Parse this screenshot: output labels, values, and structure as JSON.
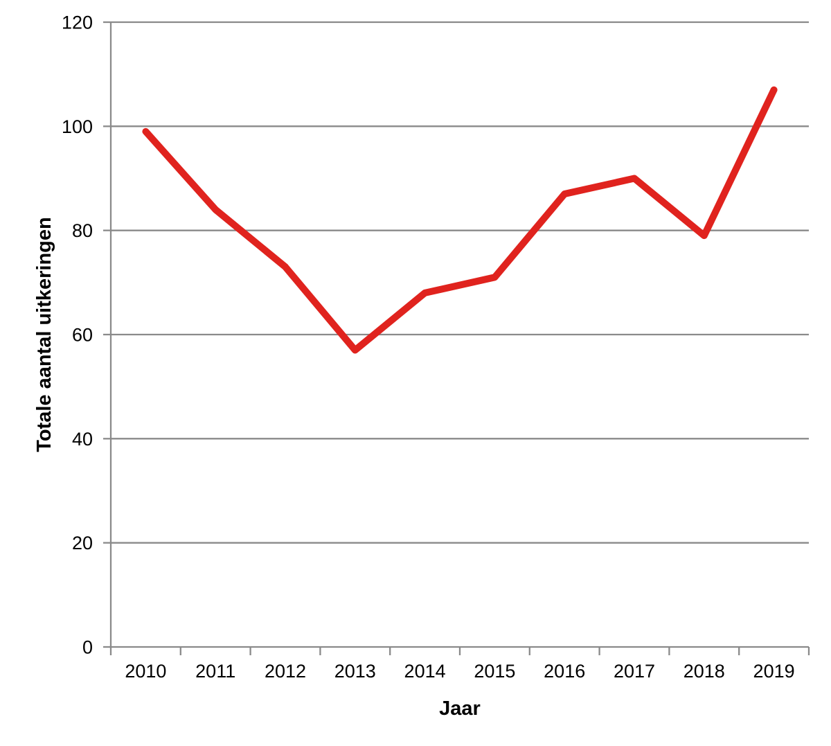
{
  "chart_data": {
    "type": "line",
    "categories": [
      "2010",
      "2011",
      "2012",
      "2013",
      "2014",
      "2015",
      "2016",
      "2017",
      "2018",
      "2019"
    ],
    "values": [
      99,
      84,
      73,
      57,
      68,
      71,
      87,
      90,
      79,
      107
    ],
    "title": "",
    "xlabel": "Jaar",
    "ylabel": "Totale aantal uitkeringen",
    "ylim": [
      0,
      120
    ],
    "yticks": [
      0,
      20,
      40,
      60,
      80,
      100,
      120
    ],
    "grid": "horizontal",
    "legend": "none",
    "colors": {
      "line": "#e0231e",
      "gridline": "#8a8a8a",
      "axis": "#8a8a8a",
      "text": "#000000",
      "background": "#ffffff"
    }
  }
}
